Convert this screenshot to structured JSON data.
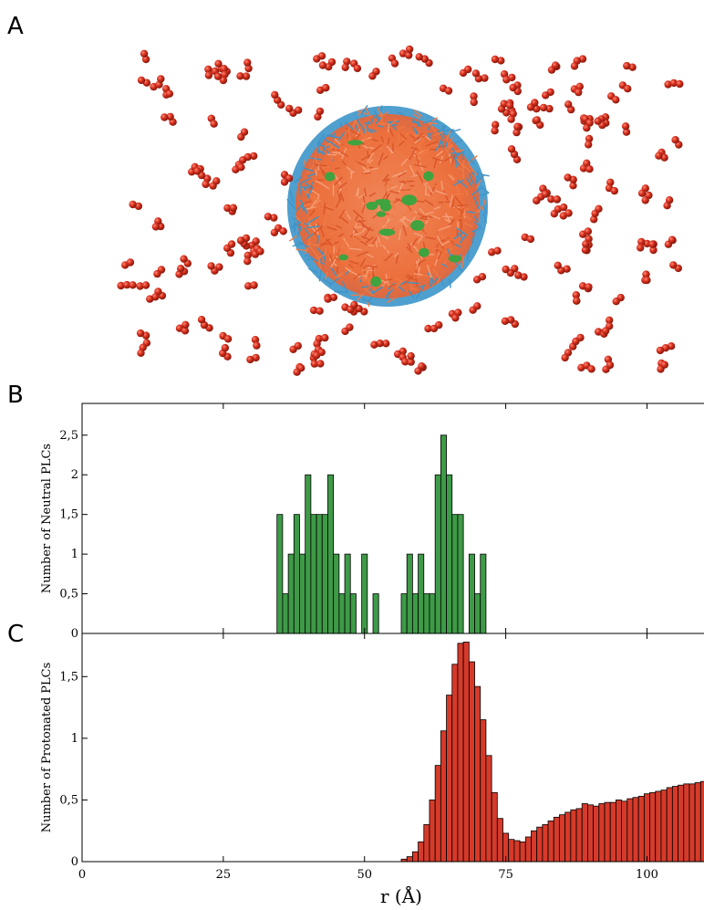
{
  "panel_labels": {
    "a": "A",
    "b": "B",
    "c": "C"
  },
  "colors": {
    "water": "#d8301e",
    "water_dark": "#8e1a0e",
    "micelle_core": "#ef7a45",
    "micelle_tail": "#3f93c7",
    "micelle_green": "#3fa33f",
    "neutral_bar": "#3e9a47",
    "protonated_bar": "#d63a2a"
  },
  "chart_data": [
    {
      "type": "bar",
      "panel": "B",
      "ylabel": "Number of Neutral PLCs",
      "xlim": [
        0,
        113
      ],
      "ylim": [
        0,
        2.9
      ],
      "y_ticks": [
        {
          "value": 0,
          "label": "0"
        },
        {
          "value": 0.5,
          "label": "0,5"
        },
        {
          "value": 1,
          "label": "1"
        },
        {
          "value": 1.5,
          "label": "1,5"
        },
        {
          "value": 2,
          "label": "2"
        },
        {
          "value": 2.5,
          "label": "2,5"
        }
      ],
      "bin_width": 1,
      "x": [
        35,
        36,
        37,
        38,
        39,
        40,
        41,
        42,
        43,
        44,
        45,
        46,
        47,
        48,
        50,
        52,
        57,
        58,
        59,
        60,
        61,
        62,
        63,
        64,
        65,
        66,
        67,
        69,
        70,
        71
      ],
      "values": [
        1.5,
        0.5,
        1,
        1.5,
        1,
        2,
        1.5,
        1.5,
        1.5,
        2,
        1,
        0.5,
        1,
        0.5,
        1,
        0.5,
        0.5,
        1,
        0.5,
        1,
        0.5,
        0.5,
        2,
        2.5,
        2,
        1.5,
        1.5,
        1,
        0.5,
        1
      ]
    },
    {
      "type": "bar",
      "panel": "C",
      "ylabel": "Number of Protonated PLCs",
      "xlabel": "r (Å)",
      "xlim": [
        0,
        113
      ],
      "ylim": [
        0,
        1.85
      ],
      "x_ticks": [
        {
          "value": 0,
          "label": "0"
        },
        {
          "value": 25,
          "label": "25"
        },
        {
          "value": 50,
          "label": "50"
        },
        {
          "value": 75,
          "label": "75"
        },
        {
          "value": 100,
          "label": "100"
        }
      ],
      "y_ticks": [
        {
          "value": 0,
          "label": "0"
        },
        {
          "value": 0.5,
          "label": "0,5"
        },
        {
          "value": 1,
          "label": "1"
        },
        {
          "value": 1.5,
          "label": "1,5"
        }
      ],
      "bin_width": 1,
      "x": [
        57,
        58,
        59,
        60,
        61,
        62,
        63,
        64,
        65,
        66,
        67,
        68,
        69,
        70,
        71,
        72,
        73,
        74,
        75,
        76,
        77,
        78,
        79,
        80,
        81,
        82,
        83,
        84,
        85,
        86,
        87,
        88,
        89,
        90,
        91,
        92,
        93,
        94,
        95,
        96,
        97,
        98,
        99,
        100,
        101,
        102,
        103,
        104,
        105,
        106,
        107,
        108,
        109,
        110,
        111,
        112
      ],
      "values": [
        0.02,
        0.04,
        0.08,
        0.16,
        0.3,
        0.5,
        0.78,
        1.06,
        1.35,
        1.6,
        1.77,
        1.78,
        1.62,
        1.42,
        1.15,
        0.86,
        0.56,
        0.35,
        0.23,
        0.18,
        0.17,
        0.16,
        0.2,
        0.25,
        0.28,
        0.3,
        0.33,
        0.36,
        0.38,
        0.4,
        0.42,
        0.43,
        0.47,
        0.46,
        0.45,
        0.47,
        0.48,
        0.48,
        0.5,
        0.49,
        0.51,
        0.52,
        0.53,
        0.55,
        0.56,
        0.57,
        0.58,
        0.6,
        0.61,
        0.62,
        0.63,
        0.63,
        0.64,
        0.65,
        0.66,
        0.68
      ]
    }
  ]
}
